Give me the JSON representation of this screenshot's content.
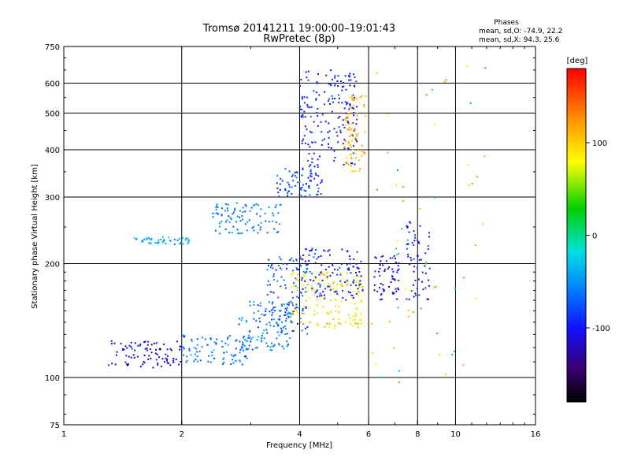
{
  "header": {
    "title_line1": "Tromsø 20141211 19:00:00–19:01:43",
    "title_line2": "RwPretec (8p)"
  },
  "phase_box": {
    "heading": "Phases",
    "line_o": "mean, sd,O: -74.9, 22.2",
    "line_x": "mean, sd,X:  94.3, 25.6"
  },
  "colorbar": {
    "unit": "[deg]",
    "ticks": [
      {
        "value": 100,
        "label": "100"
      },
      {
        "value": 0,
        "label": "0"
      },
      {
        "value": -100,
        "label": "-100"
      }
    ],
    "range": [
      -180,
      180
    ]
  },
  "chart_data": {
    "type": "scatter",
    "xlabel": "Frequency [MHz]",
    "ylabel": "Stationary phase Virtual Height [km]",
    "x_scale": "log",
    "y_scale": "log",
    "xlim": [
      1,
      16
    ],
    "ylim": [
      75,
      750
    ],
    "grid": true,
    "x_ticks": [
      {
        "value": 1,
        "label": "1"
      },
      {
        "value": 2,
        "label": "2"
      },
      {
        "value": 4,
        "label": "4"
      },
      {
        "value": 6,
        "label": "6"
      },
      {
        "value": 8,
        "label": "8"
      },
      {
        "value": 10,
        "label": "10"
      },
      {
        "value": 16,
        "label": "16"
      }
    ],
    "y_ticks": [
      {
        "value": 75,
        "label": "75"
      },
      {
        "value": 100,
        "label": "100"
      },
      {
        "value": 200,
        "label": "200"
      },
      {
        "value": 300,
        "label": "300"
      },
      {
        "value": 400,
        "label": "400"
      },
      {
        "value": 500,
        "label": "500"
      },
      {
        "value": 600,
        "label": "600"
      },
      {
        "value": 750,
        "label": "750"
      }
    ],
    "x_grid": [
      2,
      4,
      6,
      8,
      10
    ],
    "y_grid": [
      100,
      200,
      300,
      400,
      500,
      600
    ],
    "point_color_scale": "phase [deg], rainbow from -180 (black) to 180 (red)",
    "clusters": [
      {
        "fmin": 1.3,
        "fmax": 2.0,
        "hmin": 106,
        "hmax": 125,
        "phase_mean": -110,
        "phase_sd": 20
      },
      {
        "fmin": 2.0,
        "fmax": 3.0,
        "hmin": 108,
        "hmax": 130,
        "phase_mean": -60,
        "phase_sd": 25
      },
      {
        "fmin": 2.8,
        "fmax": 3.8,
        "hmin": 118,
        "hmax": 160,
        "phase_mean": -60,
        "phase_sd": 30
      },
      {
        "fmin": 3.3,
        "fmax": 4.2,
        "hmin": 130,
        "hmax": 210,
        "phase_mean": -70,
        "phase_sd": 30
      },
      {
        "fmin": 3.8,
        "fmax": 5.8,
        "hmin": 135,
        "hmax": 190,
        "phase_mean": 90,
        "phase_sd": 25
      },
      {
        "fmin": 4.0,
        "fmax": 5.8,
        "hmin": 160,
        "hmax": 220,
        "phase_mean": -95,
        "phase_sd": 30
      },
      {
        "fmin": 1.5,
        "fmax": 2.1,
        "hmin": 225,
        "hmax": 235,
        "phase_mean": -40,
        "phase_sd": 20
      },
      {
        "fmin": 2.4,
        "fmax": 3.6,
        "hmin": 240,
        "hmax": 290,
        "phase_mean": -60,
        "phase_sd": 20
      },
      {
        "fmin": 3.5,
        "fmax": 4.6,
        "hmin": 300,
        "hmax": 360,
        "phase_mean": -80,
        "phase_sd": 25
      },
      {
        "fmin": 4.0,
        "fmax": 5.6,
        "hmin": 360,
        "hmax": 650,
        "phase_mean": -95,
        "phase_sd": 25
      },
      {
        "fmin": 5.2,
        "fmax": 5.9,
        "hmin": 350,
        "hmax": 560,
        "phase_mean": 110,
        "phase_sd": 20
      },
      {
        "fmin": 6.2,
        "fmax": 7.2,
        "hmin": 160,
        "hmax": 210,
        "phase_mean": -110,
        "phase_sd": 25
      },
      {
        "fmin": 7.5,
        "fmax": 8.6,
        "hmin": 160,
        "hmax": 260,
        "phase_mean": -100,
        "phase_sd": 30
      },
      {
        "fmin": 6.0,
        "fmax": 12.0,
        "hmin": 90,
        "hmax": 680,
        "phase_mean": 60,
        "phase_sd": 70
      }
    ]
  }
}
